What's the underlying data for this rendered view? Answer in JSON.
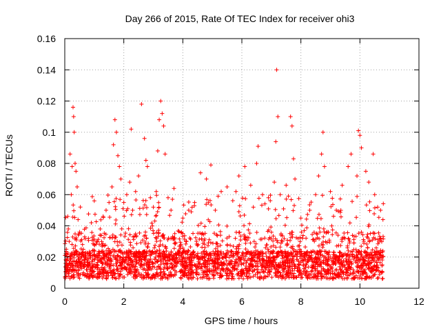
{
  "chart_data": {
    "type": "scatter",
    "title": "Day 266 of 2015, Rate Of TEC Index for receiver ohi3",
    "xlabel": "GPS time / hours",
    "ylabel": "ROTI / TECUs",
    "xlim": [
      0,
      12
    ],
    "ylim": [
      0,
      0.16
    ],
    "x_ticks": [
      0,
      2,
      4,
      6,
      8,
      10,
      12
    ],
    "y_ticks": [
      0,
      0.02,
      0.04,
      0.06,
      0.08,
      0.1,
      0.12,
      0.14,
      0.16
    ],
    "x_tick_labels": [
      "0",
      "2",
      "4",
      "6",
      "8",
      "10",
      "12"
    ],
    "y_tick_labels": [
      "0",
      "0.02",
      "0.04",
      "0.06",
      "0.08",
      "0.1",
      "0.12",
      "0.14",
      "0.16"
    ],
    "grid": true,
    "marker": "+",
    "color": "#ff0000",
    "series": [
      {
        "name": "ROTI",
        "x_range": [
          0,
          10.8
        ],
        "points": [
          [
            0.05,
            0.012
          ],
          [
            0.1,
            0.046
          ],
          [
            0.12,
            0.038
          ],
          [
            0.15,
            0.03
          ],
          [
            0.18,
            0.086
          ],
          [
            0.22,
            0.06
          ],
          [
            0.25,
            0.078
          ],
          [
            0.28,
            0.116
          ],
          [
            0.3,
            0.11
          ],
          [
            0.32,
            0.1
          ],
          [
            0.35,
            0.08
          ],
          [
            0.38,
            0.075
          ],
          [
            0.42,
            0.065
          ],
          [
            0.45,
            0.044
          ],
          [
            0.5,
            0.036
          ],
          [
            0.6,
            0.028
          ],
          [
            0.7,
            0.02
          ],
          [
            0.8,
            0.032
          ],
          [
            0.9,
            0.042
          ],
          [
            1.0,
            0.056
          ],
          [
            1.1,
            0.03
          ],
          [
            1.2,
            0.038
          ],
          [
            1.3,
            0.046
          ],
          [
            1.4,
            0.05
          ],
          [
            1.5,
            0.055
          ],
          [
            1.6,
            0.065
          ],
          [
            1.65,
            0.092
          ],
          [
            1.7,
            0.108
          ],
          [
            1.75,
            0.1
          ],
          [
            1.8,
            0.085
          ],
          [
            1.85,
            0.078
          ],
          [
            1.9,
            0.07
          ],
          [
            2.0,
            0.055
          ],
          [
            2.1,
            0.06
          ],
          [
            2.2,
            0.068
          ],
          [
            2.25,
            0.102
          ],
          [
            2.3,
            0.05
          ],
          [
            2.4,
            0.062
          ],
          [
            2.5,
            0.072
          ],
          [
            2.6,
            0.118
          ],
          [
            2.7,
            0.096
          ],
          [
            2.75,
            0.082
          ],
          [
            2.8,
            0.078
          ],
          [
            2.9,
            0.058
          ],
          [
            3.0,
            0.052
          ],
          [
            3.1,
            0.062
          ],
          [
            3.15,
            0.088
          ],
          [
            3.2,
            0.108
          ],
          [
            3.25,
            0.12
          ],
          [
            3.3,
            0.112
          ],
          [
            3.35,
            0.104
          ],
          [
            3.4,
            0.086
          ],
          [
            3.5,
            0.058
          ],
          [
            3.6,
            0.05
          ],
          [
            3.7,
            0.064
          ],
          [
            4.0,
            0.045
          ],
          [
            4.2,
            0.05
          ],
          [
            4.4,
            0.055
          ],
          [
            4.6,
            0.074
          ],
          [
            4.8,
            0.07
          ],
          [
            4.95,
            0.079
          ],
          [
            5.1,
            0.05
          ],
          [
            5.3,
            0.062
          ],
          [
            5.5,
            0.065
          ],
          [
            5.8,
            0.062
          ],
          [
            5.9,
            0.072
          ],
          [
            6.1,
            0.078
          ],
          [
            6.3,
            0.066
          ],
          [
            6.5,
            0.08
          ],
          [
            6.55,
            0.091
          ],
          [
            6.7,
            0.06
          ],
          [
            6.9,
            0.058
          ],
          [
            7.1,
            0.068
          ],
          [
            7.15,
            0.094
          ],
          [
            7.18,
            0.14
          ],
          [
            7.22,
            0.11
          ],
          [
            7.3,
            0.06
          ],
          [
            7.5,
            0.066
          ],
          [
            7.65,
            0.11
          ],
          [
            7.7,
            0.104
          ],
          [
            7.75,
            0.083
          ],
          [
            7.8,
            0.07
          ],
          [
            8.0,
            0.045
          ],
          [
            8.3,
            0.05
          ],
          [
            8.5,
            0.06
          ],
          [
            8.6,
            0.072
          ],
          [
            8.7,
            0.086
          ],
          [
            8.75,
            0.1
          ],
          [
            8.8,
            0.078
          ],
          [
            9.0,
            0.062
          ],
          [
            9.2,
            0.05
          ],
          [
            9.4,
            0.066
          ],
          [
            9.6,
            0.078
          ],
          [
            9.7,
            0.086
          ],
          [
            9.9,
            0.072
          ],
          [
            9.95,
            0.101
          ],
          [
            10.0,
            0.098
          ],
          [
            10.05,
            0.09
          ],
          [
            10.2,
            0.075
          ],
          [
            10.3,
            0.068
          ],
          [
            10.45,
            0.086
          ],
          [
            10.5,
            0.06
          ],
          [
            10.6,
            0.052
          ],
          [
            10.7,
            0.05
          ],
          [
            10.78,
            0.044
          ]
        ]
      }
    ]
  }
}
